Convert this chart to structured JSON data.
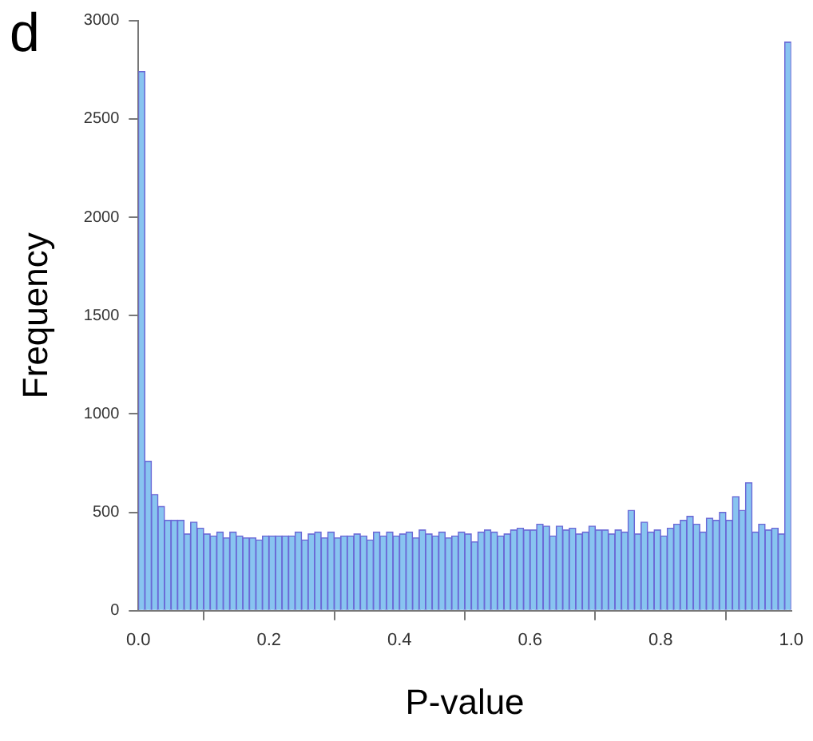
{
  "chart_data": {
    "type": "histogram",
    "title": "d",
    "xlabel": "P-value",
    "ylabel": "Frequency",
    "bins": [
      0,
      0.01,
      0.02,
      0.03,
      0.04,
      0.05,
      0.06,
      0.07,
      0.08,
      0.09,
      0.1,
      0.11,
      0.12,
      0.13,
      0.14,
      0.15,
      0.16,
      0.17,
      0.18,
      0.19,
      0.2,
      0.21,
      0.22,
      0.23,
      0.24,
      0.25,
      0.26,
      0.27,
      0.28,
      0.29,
      0.3,
      0.31,
      0.32,
      0.33,
      0.34,
      0.35,
      0.36,
      0.37,
      0.38,
      0.39,
      0.4,
      0.41,
      0.42,
      0.43,
      0.44,
      0.45,
      0.46,
      0.47,
      0.48,
      0.49,
      0.5,
      0.51,
      0.52,
      0.53,
      0.54,
      0.55,
      0.56,
      0.57,
      0.58,
      0.59,
      0.6,
      0.61,
      0.62,
      0.63,
      0.64,
      0.65,
      0.66,
      0.67,
      0.68,
      0.69,
      0.7,
      0.71,
      0.72,
      0.73,
      0.74,
      0.75,
      0.76,
      0.77,
      0.78,
      0.79,
      0.8,
      0.81,
      0.82,
      0.83,
      0.84,
      0.85,
      0.86,
      0.87,
      0.88,
      0.89,
      0.9,
      0.91,
      0.92,
      0.93,
      0.94,
      0.95,
      0.96,
      0.97,
      0.98,
      0.99,
      1
    ],
    "values": [
      2740,
      760,
      590,
      530,
      460,
      460,
      460,
      390,
      450,
      420,
      390,
      380,
      400,
      370,
      400,
      380,
      370,
      370,
      360,
      380,
      380,
      380,
      380,
      380,
      400,
      360,
      390,
      400,
      370,
      400,
      370,
      380,
      380,
      390,
      380,
      360,
      400,
      380,
      400,
      380,
      390,
      400,
      370,
      410,
      390,
      380,
      400,
      370,
      380,
      400,
      390,
      350,
      400,
      410,
      400,
      380,
      390,
      410,
      420,
      410,
      410,
      440,
      430,
      380,
      430,
      410,
      420,
      390,
      400,
      430,
      410,
      410,
      390,
      410,
      400,
      510,
      390,
      450,
      400,
      410,
      380,
      420,
      440,
      460,
      480,
      440,
      400,
      470,
      460,
      500,
      460,
      580,
      510,
      650,
      400,
      440,
      410,
      420,
      390,
      2890
    ],
    "color": "#88c4f0",
    "xlim": [
      0,
      1
    ],
    "xticks": [
      {
        "value": 0,
        "label": "0.0"
      },
      {
        "value": 0.2,
        "label": "0.2"
      },
      {
        "value": 0.4,
        "label": "0.4"
      },
      {
        "value": 0.6,
        "label": "0.6"
      },
      {
        "value": 0.8,
        "label": "0.8"
      },
      {
        "value": 1,
        "label": "1.0"
      }
    ],
    "ylim": [
      0,
      3000
    ],
    "yticks": [
      0,
      500,
      1000,
      1500,
      2000,
      2500,
      3000
    ],
    "grid": false,
    "legend": false
  }
}
